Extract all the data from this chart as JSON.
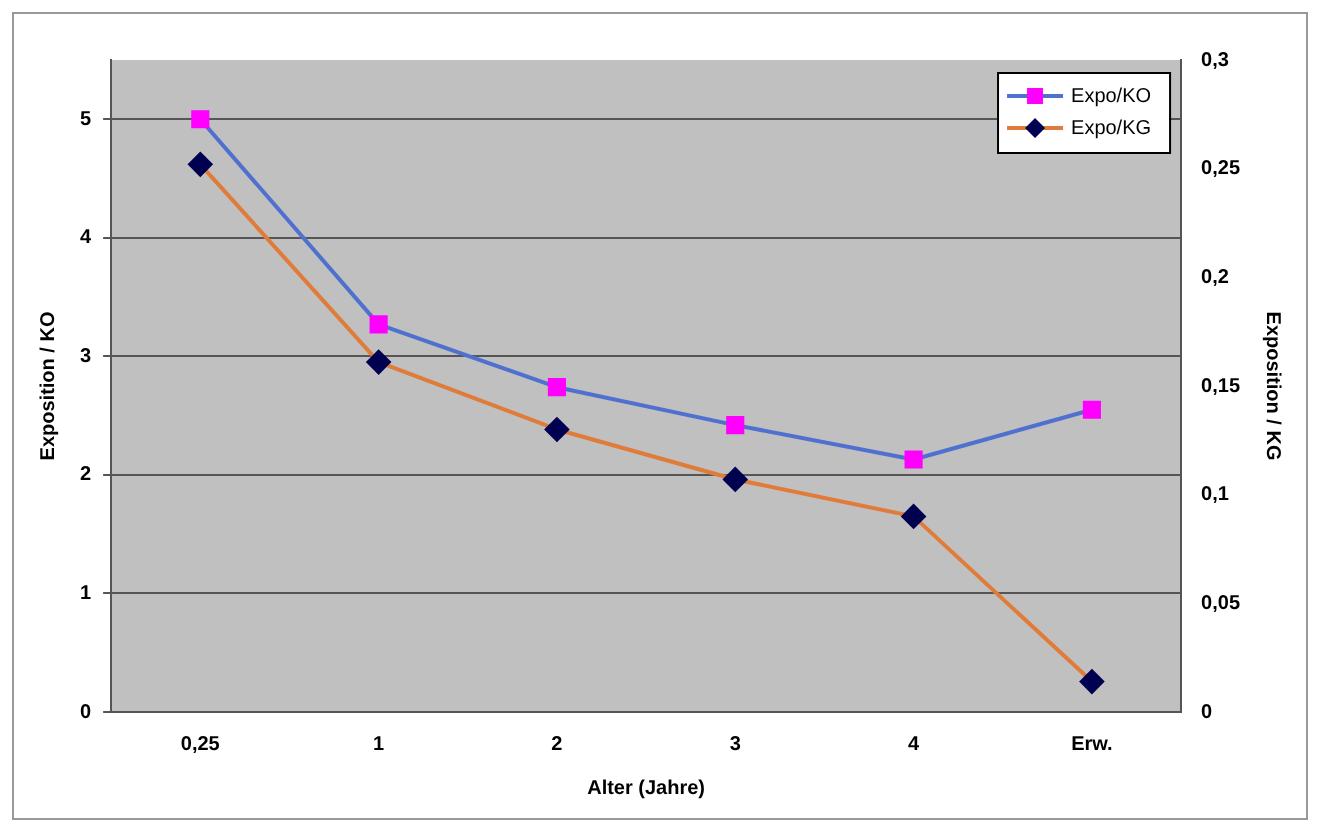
{
  "chart_data": {
    "type": "line",
    "xlabel": "Alter (Jahre)",
    "ylabel": "Exposition / KO",
    "y2label": "Exposition / KG",
    "categories": [
      "0,25",
      "1",
      "2",
      "3",
      "4",
      "Erw."
    ],
    "series": [
      {
        "name": "Expo/KO",
        "color": "#5070d0",
        "colors": [
          "#ff00ff",
          "#ff00ff",
          "#ff00ff",
          "#ff00ff",
          "#ff00ff",
          "#ff00ff"
        ],
        "marker": "square",
        "values": [
          5.0,
          3.27,
          2.74,
          2.42,
          2.13,
          2.55
        ]
      },
      {
        "name": "Expo/KG",
        "color": "#e07b39",
        "colors": [
          "#000050",
          "#000050",
          "#000050",
          "#000050",
          "#000050",
          "#000050"
        ],
        "marker": "diamond",
        "axis": "y2",
        "values": [
          0.252,
          0.161,
          0.13,
          0.107,
          0.09,
          0.014
        ]
      }
    ],
    "ylim": [
      0,
      5.5
    ],
    "yticks": [
      0,
      1,
      2,
      3,
      4,
      5
    ],
    "y2lim": [
      0,
      0.3
    ],
    "y2ticks": [
      0,
      {
        "value": 0.05,
        "label": "0,05"
      },
      {
        "value": 0.1,
        "label": "0,1"
      },
      {
        "value": 0.15,
        "label": "0,15"
      },
      {
        "value": 0.2,
        "label": "0,2"
      },
      {
        "value": 0.25,
        "label": "0,25"
      },
      {
        "value": 0.3,
        "label": "0,3"
      }
    ],
    "grid": "y",
    "legend": "top right"
  }
}
